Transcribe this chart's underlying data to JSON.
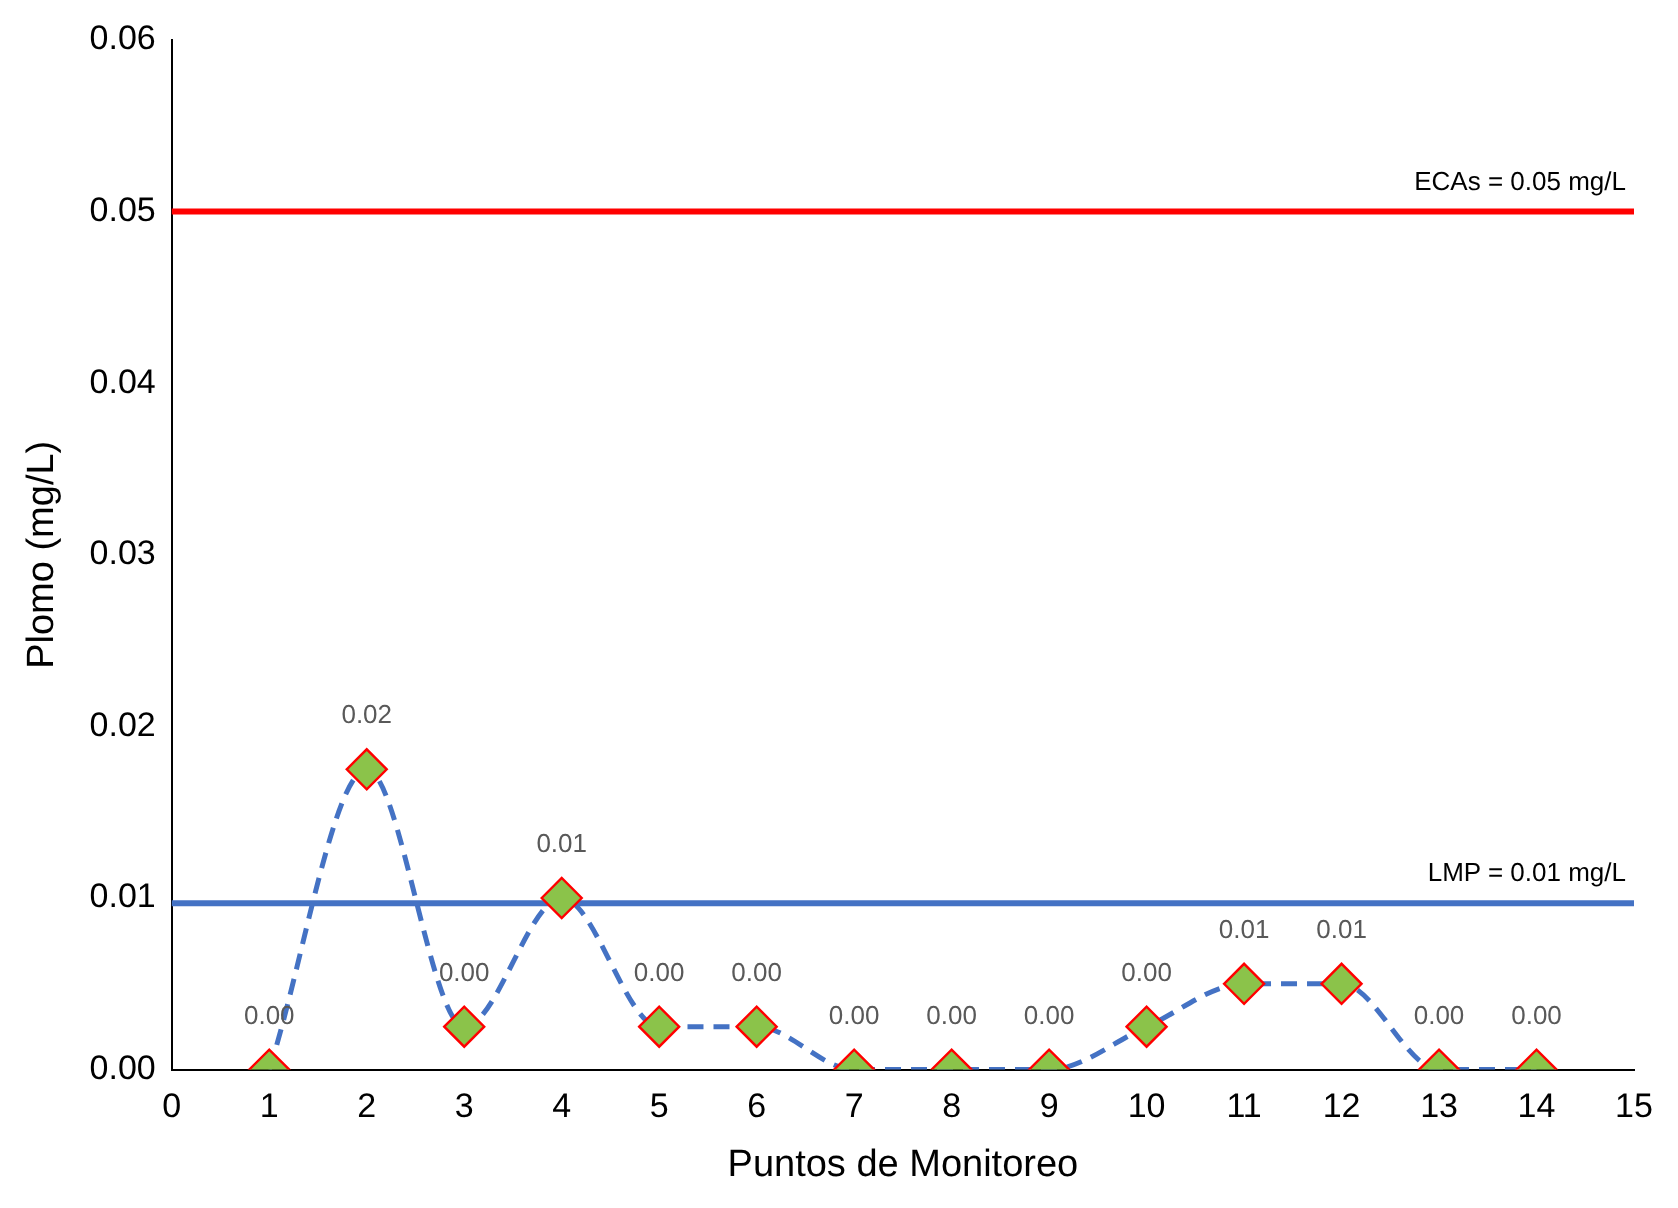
{
  "chart_data": {
    "type": "line",
    "xlabel": "Puntos de Monitoreo",
    "ylabel": "Plomo (mg/L)",
    "x": [
      1,
      2,
      3,
      4,
      5,
      6,
      7,
      8,
      9,
      10,
      11,
      12,
      13,
      14
    ],
    "series": [
      {
        "color": "#4472c4",
        "values": [
          0,
          0.0175,
          0.0025,
          0.01,
          0.0025,
          0.0025,
          0,
          0,
          0,
          0.0025,
          0.005,
          0.005,
          0,
          0
        ],
        "value_labels": [
          "0.00",
          "0.02",
          "0.00",
          "0.01",
          "0.00",
          "0.00",
          "0.00",
          "0.00",
          "0.00",
          "0.00",
          "0.01",
          "0.01",
          "0.00",
          "0.00"
        ]
      }
    ],
    "xlim": [
      0,
      15
    ],
    "xticks": [
      0,
      1,
      2,
      3,
      4,
      5,
      6,
      7,
      8,
      9,
      10,
      11,
      12,
      13,
      14,
      15
    ],
    "ylim": [
      0,
      0.06
    ],
    "yticks": [
      {
        "value": 0,
        "label": "0.00"
      },
      {
        "value": 0.01,
        "label": "0.01"
      },
      {
        "value": 0.02,
        "label": "0.02"
      },
      {
        "value": 0.03,
        "label": "0.03"
      },
      {
        "value": 0.04,
        "label": "0.04"
      },
      {
        "value": 0.05,
        "label": "0.05"
      },
      {
        "value": 0.06,
        "label": "0.06"
      }
    ],
    "ref_lines": [
      {
        "axis": "y",
        "value": 0.05,
        "label": "ECAs = 0.05 mg/L",
        "color": "#ff0000"
      },
      {
        "axis": "y",
        "value": 0.0097,
        "label": "LMP = 0.01 mg/L",
        "color": "#4472c4"
      }
    ],
    "marker": "diamond",
    "line_style": "dashed",
    "grid": false,
    "legend": false
  }
}
